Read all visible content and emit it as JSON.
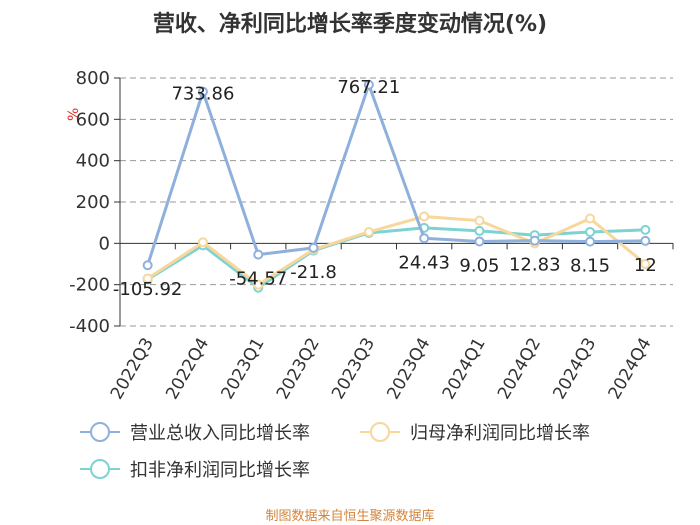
{
  "title": "营收、净利同比增长率季度变动情况(%)",
  "source": "制图数据来自恒生聚源数据库",
  "chart_data": {
    "type": "line",
    "ylabel": "%",
    "ylim": [
      -400,
      800
    ],
    "yticks": [
      -400,
      -200,
      0,
      200,
      400,
      600,
      800
    ],
    "grid": true,
    "legend_position": "bottom",
    "categories": [
      "2022Q3",
      "2022Q4",
      "2023Q1",
      "2023Q2",
      "2023Q3",
      "2023Q4",
      "2024Q1",
      "2024Q2",
      "2024Q3",
      "2024Q4"
    ],
    "series": [
      {
        "name": "营业总收入同比增长率",
        "color": "#8fb0dc",
        "values": [
          -105.92,
          733.86,
          -54.57,
          -21.8,
          767.21,
          24.43,
          9.05,
          12.83,
          8.15,
          12
        ],
        "labels": [
          "-105.92",
          "733.86",
          "-54.57",
          "-21.8",
          "767.21",
          "24.43",
          "9.05",
          "12.83",
          "8.15",
          "12"
        ]
      },
      {
        "name": "归母净利润同比增长率",
        "color": "#f8d79c",
        "values": [
          -170,
          5,
          -200,
          -30,
          55,
          130,
          110,
          0,
          120,
          -100
        ]
      },
      {
        "name": "扣非净利润同比增长率",
        "color": "#7dd3d1",
        "values": [
          -175,
          -10,
          -215,
          -35,
          50,
          75,
          60,
          40,
          55,
          65
        ]
      }
    ]
  }
}
